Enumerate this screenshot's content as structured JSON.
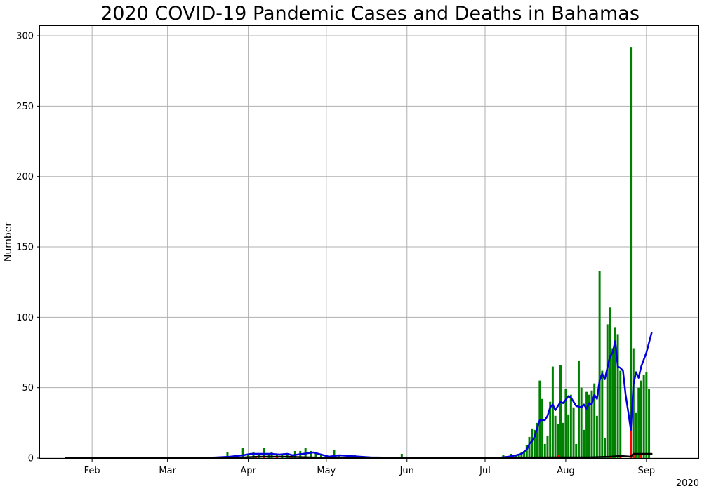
{
  "chart_data": {
    "type": "bar",
    "title": "2020 COVID-19 Pandemic Cases and Deaths in Bahamas",
    "xlabel": "",
    "ylabel": "Number",
    "year_label": "2020",
    "ylim": [
      0,
      307
    ],
    "xlim": [
      "2020-01-12",
      "2020-09-21"
    ],
    "grid": true,
    "month_ticks": [
      {
        "label": "Feb",
        "date": "2020-02-01"
      },
      {
        "label": "Mar",
        "date": "2020-03-01"
      },
      {
        "label": "Apr",
        "date": "2020-04-01"
      },
      {
        "label": "May",
        "date": "2020-05-01"
      },
      {
        "label": "Jun",
        "date": "2020-06-01"
      },
      {
        "label": "Jul",
        "date": "2020-07-01"
      },
      {
        "label": "Aug",
        "date": "2020-08-01"
      },
      {
        "label": "Sep",
        "date": "2020-09-01"
      }
    ],
    "y_ticks": [
      0,
      50,
      100,
      150,
      200,
      250,
      300
    ],
    "colors": {
      "daily_cases": "#008000",
      "daily_deaths": "#ff0000",
      "cases_avg": "#0000dd",
      "deaths_avg": "#000000"
    },
    "series": [
      {
        "type": "bar",
        "color": "#008000",
        "points": [
          [
            "2020-03-15",
            1
          ],
          [
            "2020-03-19",
            1
          ],
          [
            "2020-03-21",
            1
          ],
          [
            "2020-03-24",
            4
          ],
          [
            "2020-03-27",
            2
          ],
          [
            "2020-03-29",
            1
          ],
          [
            "2020-03-30",
            7
          ],
          [
            "2020-04-01",
            3
          ],
          [
            "2020-04-03",
            4
          ],
          [
            "2020-04-05",
            3
          ],
          [
            "2020-04-07",
            7
          ],
          [
            "2020-04-09",
            3
          ],
          [
            "2020-04-10",
            4
          ],
          [
            "2020-04-12",
            3
          ],
          [
            "2020-04-14",
            3
          ],
          [
            "2020-04-16",
            3
          ],
          [
            "2020-04-18",
            1
          ],
          [
            "2020-04-19",
            5
          ],
          [
            "2020-04-21",
            5
          ],
          [
            "2020-04-23",
            7
          ],
          [
            "2020-04-25",
            5
          ],
          [
            "2020-04-27",
            4
          ],
          [
            "2020-04-29",
            2
          ],
          [
            "2020-05-04",
            6
          ],
          [
            "2020-05-06",
            2
          ],
          [
            "2020-05-08",
            1
          ],
          [
            "2020-05-10",
            1
          ],
          [
            "2020-05-12",
            2
          ],
          [
            "2020-05-14",
            1
          ],
          [
            "2020-05-21",
            1
          ],
          [
            "2020-05-30",
            3
          ],
          [
            "2020-07-08",
            2
          ],
          [
            "2020-07-11",
            3
          ],
          [
            "2020-07-13",
            2
          ],
          [
            "2020-07-14",
            3
          ],
          [
            "2020-07-15",
            4
          ],
          [
            "2020-07-16",
            5
          ],
          [
            "2020-07-17",
            9
          ],
          [
            "2020-07-18",
            15
          ],
          [
            "2020-07-19",
            21
          ],
          [
            "2020-07-20",
            20
          ],
          [
            "2020-07-21",
            25
          ],
          [
            "2020-07-22",
            55
          ],
          [
            "2020-07-23",
            42
          ],
          [
            "2020-07-24",
            10
          ],
          [
            "2020-07-25",
            16
          ],
          [
            "2020-07-26",
            40
          ],
          [
            "2020-07-27",
            65
          ],
          [
            "2020-07-28",
            30
          ],
          [
            "2020-07-29",
            24
          ],
          [
            "2020-07-30",
            66
          ],
          [
            "2020-07-31",
            25
          ],
          [
            "2020-08-01",
            49
          ],
          [
            "2020-08-02",
            31
          ],
          [
            "2020-08-03",
            45
          ],
          [
            "2020-08-04",
            36
          ],
          [
            "2020-08-05",
            10
          ],
          [
            "2020-08-06",
            69
          ],
          [
            "2020-08-07",
            50
          ],
          [
            "2020-08-08",
            20
          ],
          [
            "2020-08-09",
            47
          ],
          [
            "2020-08-10",
            45
          ],
          [
            "2020-08-11",
            48
          ],
          [
            "2020-08-12",
            53
          ],
          [
            "2020-08-13",
            30
          ],
          [
            "2020-08-14",
            133
          ],
          [
            "2020-08-15",
            62
          ],
          [
            "2020-08-16",
            14
          ],
          [
            "2020-08-17",
            95
          ],
          [
            "2020-08-18",
            107
          ],
          [
            "2020-08-19",
            78
          ],
          [
            "2020-08-20",
            93
          ],
          [
            "2020-08-21",
            88
          ],
          [
            "2020-08-22",
            62
          ],
          [
            "2020-08-26",
            292
          ],
          [
            "2020-08-27",
            78
          ],
          [
            "2020-08-28",
            32
          ],
          [
            "2020-08-29",
            50
          ],
          [
            "2020-08-30",
            55
          ],
          [
            "2020-08-31",
            59
          ],
          [
            "2020-09-01",
            61
          ],
          [
            "2020-09-02",
            49
          ]
        ]
      },
      {
        "type": "bar",
        "color": "#ff0000",
        "points": [
          [
            "2020-03-31",
            1
          ],
          [
            "2020-04-04",
            1
          ],
          [
            "2020-04-07",
            1
          ],
          [
            "2020-04-12",
            1
          ],
          [
            "2020-04-17",
            1
          ],
          [
            "2020-07-29",
            2
          ],
          [
            "2020-08-05",
            1
          ],
          [
            "2020-08-18",
            1
          ],
          [
            "2020-08-22",
            2
          ],
          [
            "2020-08-26",
            22
          ],
          [
            "2020-08-27",
            2
          ],
          [
            "2020-08-30",
            3
          ]
        ]
      },
      {
        "type": "line",
        "color": "#0000dd",
        "points": [
          [
            "2020-01-22",
            0
          ],
          [
            "2020-03-14",
            0
          ],
          [
            "2020-03-20",
            0.5
          ],
          [
            "2020-03-25",
            1
          ],
          [
            "2020-03-30",
            2
          ],
          [
            "2020-04-02",
            3
          ],
          [
            "2020-04-06",
            3
          ],
          [
            "2020-04-10",
            3
          ],
          [
            "2020-04-13",
            2.5
          ],
          [
            "2020-04-16",
            3
          ],
          [
            "2020-04-18",
            2
          ],
          [
            "2020-04-22",
            3
          ],
          [
            "2020-04-26",
            4
          ],
          [
            "2020-04-29",
            2.5
          ],
          [
            "2020-05-02",
            1
          ],
          [
            "2020-05-06",
            2
          ],
          [
            "2020-05-10",
            1.5
          ],
          [
            "2020-05-14",
            1
          ],
          [
            "2020-05-18",
            0.5
          ],
          [
            "2020-05-25",
            0.3
          ],
          [
            "2020-06-05",
            0.3
          ],
          [
            "2020-06-20",
            0
          ],
          [
            "2020-07-05",
            0
          ],
          [
            "2020-07-10",
            1
          ],
          [
            "2020-07-13",
            2
          ],
          [
            "2020-07-15",
            3
          ],
          [
            "2020-07-17",
            6
          ],
          [
            "2020-07-18",
            10
          ],
          [
            "2020-07-19",
            12
          ],
          [
            "2020-07-20",
            15
          ],
          [
            "2020-07-21",
            21
          ],
          [
            "2020-07-22",
            27
          ],
          [
            "2020-07-24",
            27
          ],
          [
            "2020-07-25",
            30
          ],
          [
            "2020-07-26",
            36
          ],
          [
            "2020-07-27",
            38
          ],
          [
            "2020-07-28",
            34
          ],
          [
            "2020-07-29",
            37
          ],
          [
            "2020-07-30",
            40
          ],
          [
            "2020-07-31",
            39
          ],
          [
            "2020-08-02",
            44
          ],
          [
            "2020-08-03",
            43
          ],
          [
            "2020-08-05",
            37
          ],
          [
            "2020-08-07",
            36
          ],
          [
            "2020-08-08",
            38
          ],
          [
            "2020-08-09",
            35
          ],
          [
            "2020-08-10",
            39
          ],
          [
            "2020-08-11",
            38
          ],
          [
            "2020-08-12",
            45
          ],
          [
            "2020-08-13",
            42
          ],
          [
            "2020-08-14",
            55
          ],
          [
            "2020-08-15",
            60
          ],
          [
            "2020-08-16",
            56
          ],
          [
            "2020-08-17",
            64
          ],
          [
            "2020-08-18",
            72
          ],
          [
            "2020-08-19",
            75
          ],
          [
            "2020-08-20",
            83
          ],
          [
            "2020-08-21",
            65
          ],
          [
            "2020-08-22",
            64
          ],
          [
            "2020-08-23",
            62
          ],
          [
            "2020-08-24",
            45
          ],
          [
            "2020-08-25",
            33
          ],
          [
            "2020-08-26",
            20
          ],
          [
            "2020-08-27",
            52
          ],
          [
            "2020-08-28",
            61
          ],
          [
            "2020-08-29",
            57
          ],
          [
            "2020-08-30",
            65
          ],
          [
            "2020-09-01",
            75
          ],
          [
            "2020-09-03",
            89
          ]
        ]
      },
      {
        "type": "line",
        "color": "#000000",
        "points": [
          [
            "2020-01-22",
            0
          ],
          [
            "2020-03-25",
            0
          ],
          [
            "2020-04-05",
            1
          ],
          [
            "2020-04-15",
            1
          ],
          [
            "2020-04-25",
            0.5
          ],
          [
            "2020-05-05",
            0
          ],
          [
            "2020-07-28",
            0.5
          ],
          [
            "2020-08-10",
            0.5
          ],
          [
            "2020-08-18",
            1
          ],
          [
            "2020-08-22",
            1.5
          ],
          [
            "2020-08-26",
            1
          ],
          [
            "2020-08-27",
            3
          ],
          [
            "2020-09-03",
            3
          ]
        ]
      }
    ]
  }
}
